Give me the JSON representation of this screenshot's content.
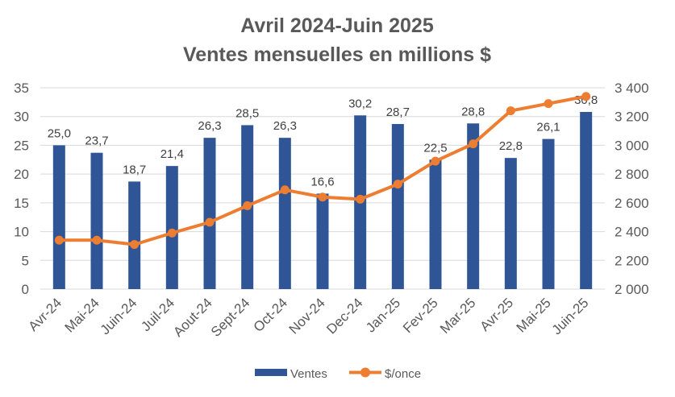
{
  "chart_data": {
    "type": "bar+line",
    "title": "Avril 2024-Juin 2025",
    "subtitle": "Ventes mensuelles en millions $",
    "categories": [
      "Avr-24",
      "Mai-24",
      "Juin-24",
      "Juil-24",
      "Aout-24",
      "Sept-24",
      "Oct-24",
      "Nov-24",
      "Dec-24",
      "Jan-25",
      "Fev-25",
      "Mar-25",
      "Avr-25",
      "Mai-25",
      "Juin-25"
    ],
    "series": [
      {
        "name": "Ventes",
        "type": "bar",
        "axis": "left",
        "color": "#2F5597",
        "values": [
          25.0,
          23.7,
          18.7,
          21.4,
          26.3,
          28.5,
          26.3,
          16.6,
          30.2,
          28.7,
          22.5,
          28.8,
          22.8,
          26.1,
          30.8
        ],
        "labels": [
          "25,0",
          "23,7",
          "18,7",
          "21,4",
          "26,3",
          "28,5",
          "26,3",
          "16,6",
          "30,2",
          "28,7",
          "22,5",
          "28,8",
          "22,8",
          "26,1",
          "30,8"
        ]
      },
      {
        "name": "$/once",
        "type": "line",
        "axis": "right",
        "color": "#ED7D31",
        "values": [
          2340,
          2340,
          2310,
          2390,
          2465,
          2580,
          2690,
          2640,
          2625,
          2730,
          2890,
          3010,
          3240,
          3290,
          3340
        ]
      }
    ],
    "y_left": {
      "min": 0,
      "max": 35,
      "ticks": [
        0,
        5,
        10,
        15,
        20,
        25,
        30,
        35
      ],
      "tick_labels": [
        "0",
        "5",
        "10",
        "15",
        "20",
        "25",
        "30",
        "35"
      ]
    },
    "y_right": {
      "min": 2000,
      "max": 3400,
      "ticks": [
        2000,
        2200,
        2400,
        2600,
        2800,
        3000,
        3200,
        3400
      ],
      "tick_labels": [
        "2 000",
        "2 200",
        "2 400",
        "2 600",
        "2 800",
        "3 000",
        "3 200",
        "3 400"
      ]
    },
    "grid": true,
    "legend_position": "bottom",
    "legend": [
      {
        "label": "Ventes",
        "marker": "bar",
        "color": "#2F5597"
      },
      {
        "label": "$/once",
        "marker": "line-dot",
        "color": "#ED7D31"
      }
    ]
  }
}
